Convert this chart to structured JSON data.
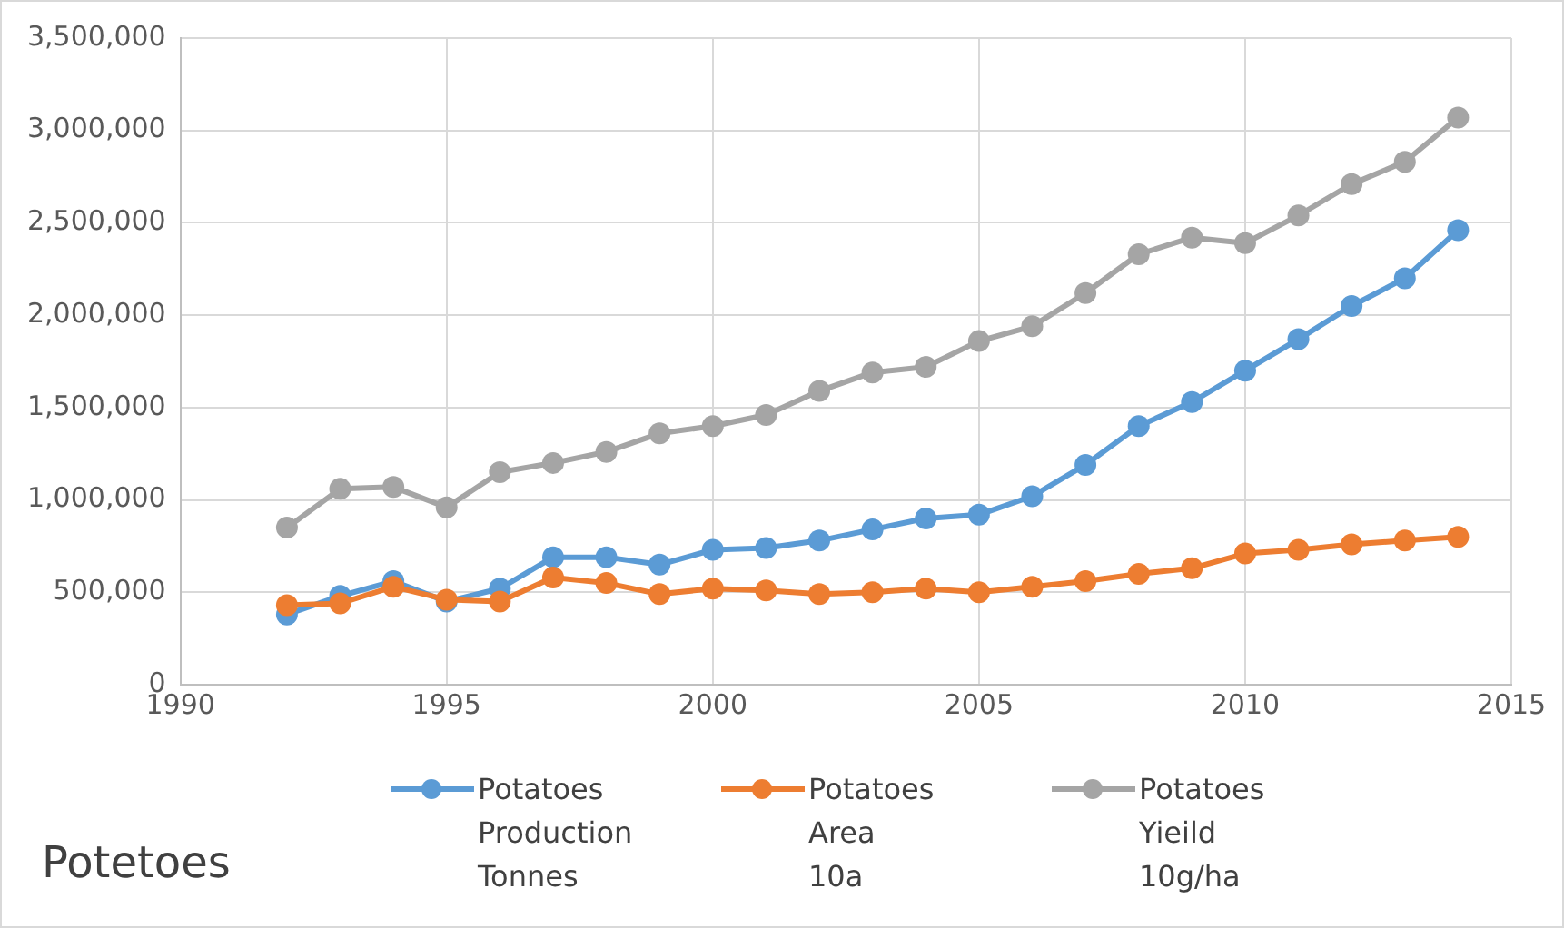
{
  "chart_data": {
    "type": "line",
    "title": "Potetoes",
    "x": [
      1992,
      1993,
      1994,
      1995,
      1996,
      1997,
      1998,
      1999,
      2000,
      2001,
      2002,
      2003,
      2004,
      2005,
      2006,
      2007,
      2008,
      2009,
      2010,
      2011,
      2012,
      2013,
      2014
    ],
    "series": [
      {
        "name": "Potatoes Production Tonnes",
        "color": "#5b9bd5",
        "values": [
          380000,
          480000,
          560000,
          450000,
          520000,
          690000,
          690000,
          650000,
          730000,
          740000,
          780000,
          840000,
          900000,
          920000,
          1020000,
          1190000,
          1400000,
          1530000,
          1700000,
          1870000,
          2050000,
          2200000,
          2460000
        ]
      },
      {
        "name": "Potatoes Area 10a",
        "color": "#ed7d31",
        "values": [
          430000,
          440000,
          530000,
          460000,
          450000,
          580000,
          550000,
          490000,
          520000,
          510000,
          490000,
          500000,
          520000,
          500000,
          530000,
          560000,
          600000,
          630000,
          710000,
          730000,
          760000,
          780000,
          800000
        ]
      },
      {
        "name": "Potatoes Yieild 10g/ha",
        "color": "#a5a5a5",
        "values": [
          850000,
          1060000,
          1070000,
          960000,
          1150000,
          1200000,
          1260000,
          1360000,
          1400000,
          1460000,
          1590000,
          1690000,
          1720000,
          1860000,
          1940000,
          2120000,
          2330000,
          2420000,
          2390000,
          2540000,
          2710000,
          2830000,
          3070000
        ]
      }
    ],
    "xlim": [
      1990,
      2015
    ],
    "xticks": [
      1990,
      1995,
      2000,
      2005,
      2010,
      2015
    ],
    "ylim": [
      0,
      3500000
    ],
    "yticks": [
      0,
      {
        "value": 500000,
        "label": "500,000"
      },
      {
        "value": 1000000,
        "label": "1,000,000"
      },
      {
        "value": 1500000,
        "label": "1,500,000"
      },
      {
        "value": 2000000,
        "label": "2,000,000"
      },
      {
        "value": 2500000,
        "label": "2,500,000"
      },
      {
        "value": 3000000,
        "label": "3,000,000"
      },
      {
        "value": 3500000,
        "label": "3,500,000"
      }
    ],
    "grid": true,
    "legend": "bottom",
    "marker": "circle",
    "line_style": "solid"
  }
}
